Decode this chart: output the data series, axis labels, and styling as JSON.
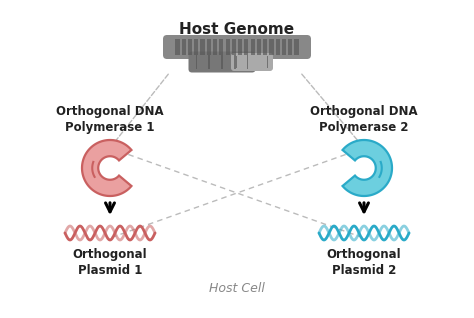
{
  "title": "Host Genome",
  "subtitle": "Host Cell",
  "label_poly1": "Orthogonal DNA\nPolymerase 1",
  "label_poly2": "Orthogonal DNA\nPolymerase 2",
  "label_plasmid1": "Orthogonal\nPlasmid 1",
  "label_plasmid2": "Orthogonal\nPlasmid 2",
  "color_pink": "#C96060",
  "color_pink_fill": "#EAA0A0",
  "color_blue": "#2AAAC8",
  "color_blue_fill": "#6CCFDF",
  "color_gray": "#888888",
  "color_dark": "#222222",
  "bg_color": "#FFFFFF",
  "border_color": "#222222",
  "dashed_color": "#BBBBBB",
  "chrom_color": "#888888",
  "chrom_band_color": "#555555"
}
